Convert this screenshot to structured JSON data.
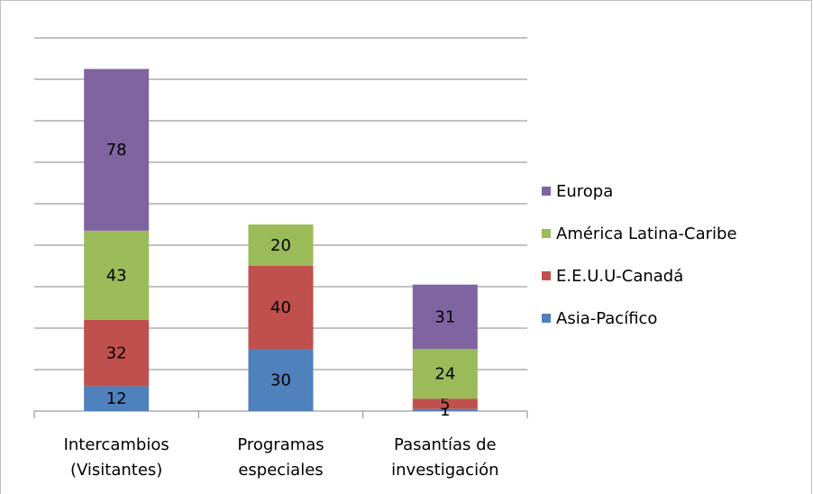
{
  "chart_data": {
    "type": "stacked_bar",
    "categories": [
      "Intercambios\n(Visitantes)",
      "Programas\nespeciales",
      "Pasantías de\ninvestigación"
    ],
    "series": [
      {
        "name": "Asia-Pacífico",
        "color": "#4f81bd",
        "values": [
          12,
          30,
          1
        ]
      },
      {
        "name": "E.E.U.U-Canadá",
        "color": "#c0504d",
        "values": [
          32,
          40,
          5
        ]
      },
      {
        "name": "América Latina-Caribe",
        "color": "#9bbb59",
        "values": [
          43,
          20,
          24
        ]
      },
      {
        "name": "Europa",
        "color": "#8064a2",
        "values": [
          78,
          null,
          31
        ]
      }
    ],
    "ylim": [
      0,
      180
    ],
    "yticks": [
      0,
      20,
      40,
      60,
      80,
      100,
      120,
      140,
      160,
      180
    ],
    "ytick_labels": false,
    "grid": true,
    "legend": "right"
  }
}
